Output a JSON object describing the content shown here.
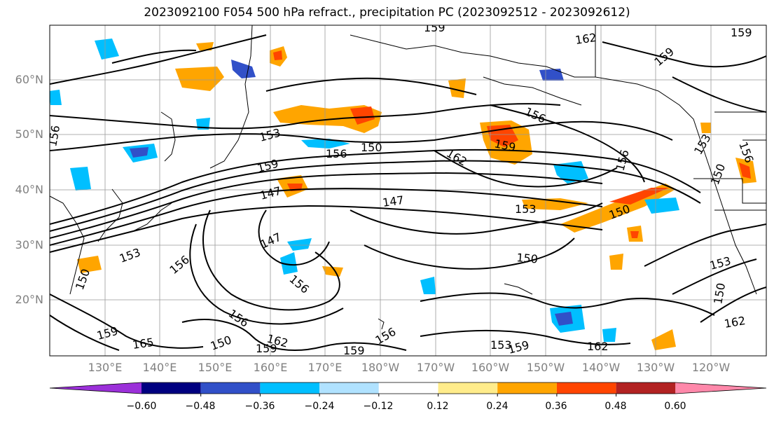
{
  "title": "2023092100 F054 500 hPa refract., precipitation PC (2023092512 - 2023092612)",
  "map": {
    "lat_labels": [
      "60°N",
      "50°N",
      "40°N",
      "30°N",
      "20°N"
    ],
    "lon_labels": [
      "130°E",
      "140°E",
      "150°E",
      "160°E",
      "170°E",
      "180°W",
      "170°W",
      "160°W",
      "150°W",
      "140°W",
      "130°W",
      "120°W"
    ],
    "contour_labels": [
      "159",
      "162",
      "159",
      "159",
      "156",
      "153",
      "156",
      "150",
      "156",
      "162",
      "159",
      "159",
      "147",
      "147",
      "153",
      "150",
      "156",
      "147",
      "156",
      "150",
      "156",
      "153",
      "150",
      "153",
      "156",
      "162",
      "156",
      "165",
      "150",
      "159",
      "159",
      "156",
      "153",
      "159",
      "162",
      "150",
      "153",
      "162",
      "150",
      "159"
    ],
    "colors": {
      "coastline": "#000000",
      "contour": "#000000",
      "grid": "#999999",
      "tick_label": "#808080"
    }
  },
  "colorbar": {
    "tick_labels": [
      "−0.60",
      "−0.48",
      "−0.36",
      "−0.24",
      "−0.12",
      "0.12",
      "0.24",
      "0.36",
      "0.48",
      "0.60"
    ],
    "colors": [
      "#9b30d9",
      "#000080",
      "#3150c8",
      "#00bfff",
      "#b0e2ff",
      "#ffffff",
      "#ffec8b",
      "#ffa500",
      "#ff4500",
      "#b22222",
      "#ff88aa"
    ]
  }
}
